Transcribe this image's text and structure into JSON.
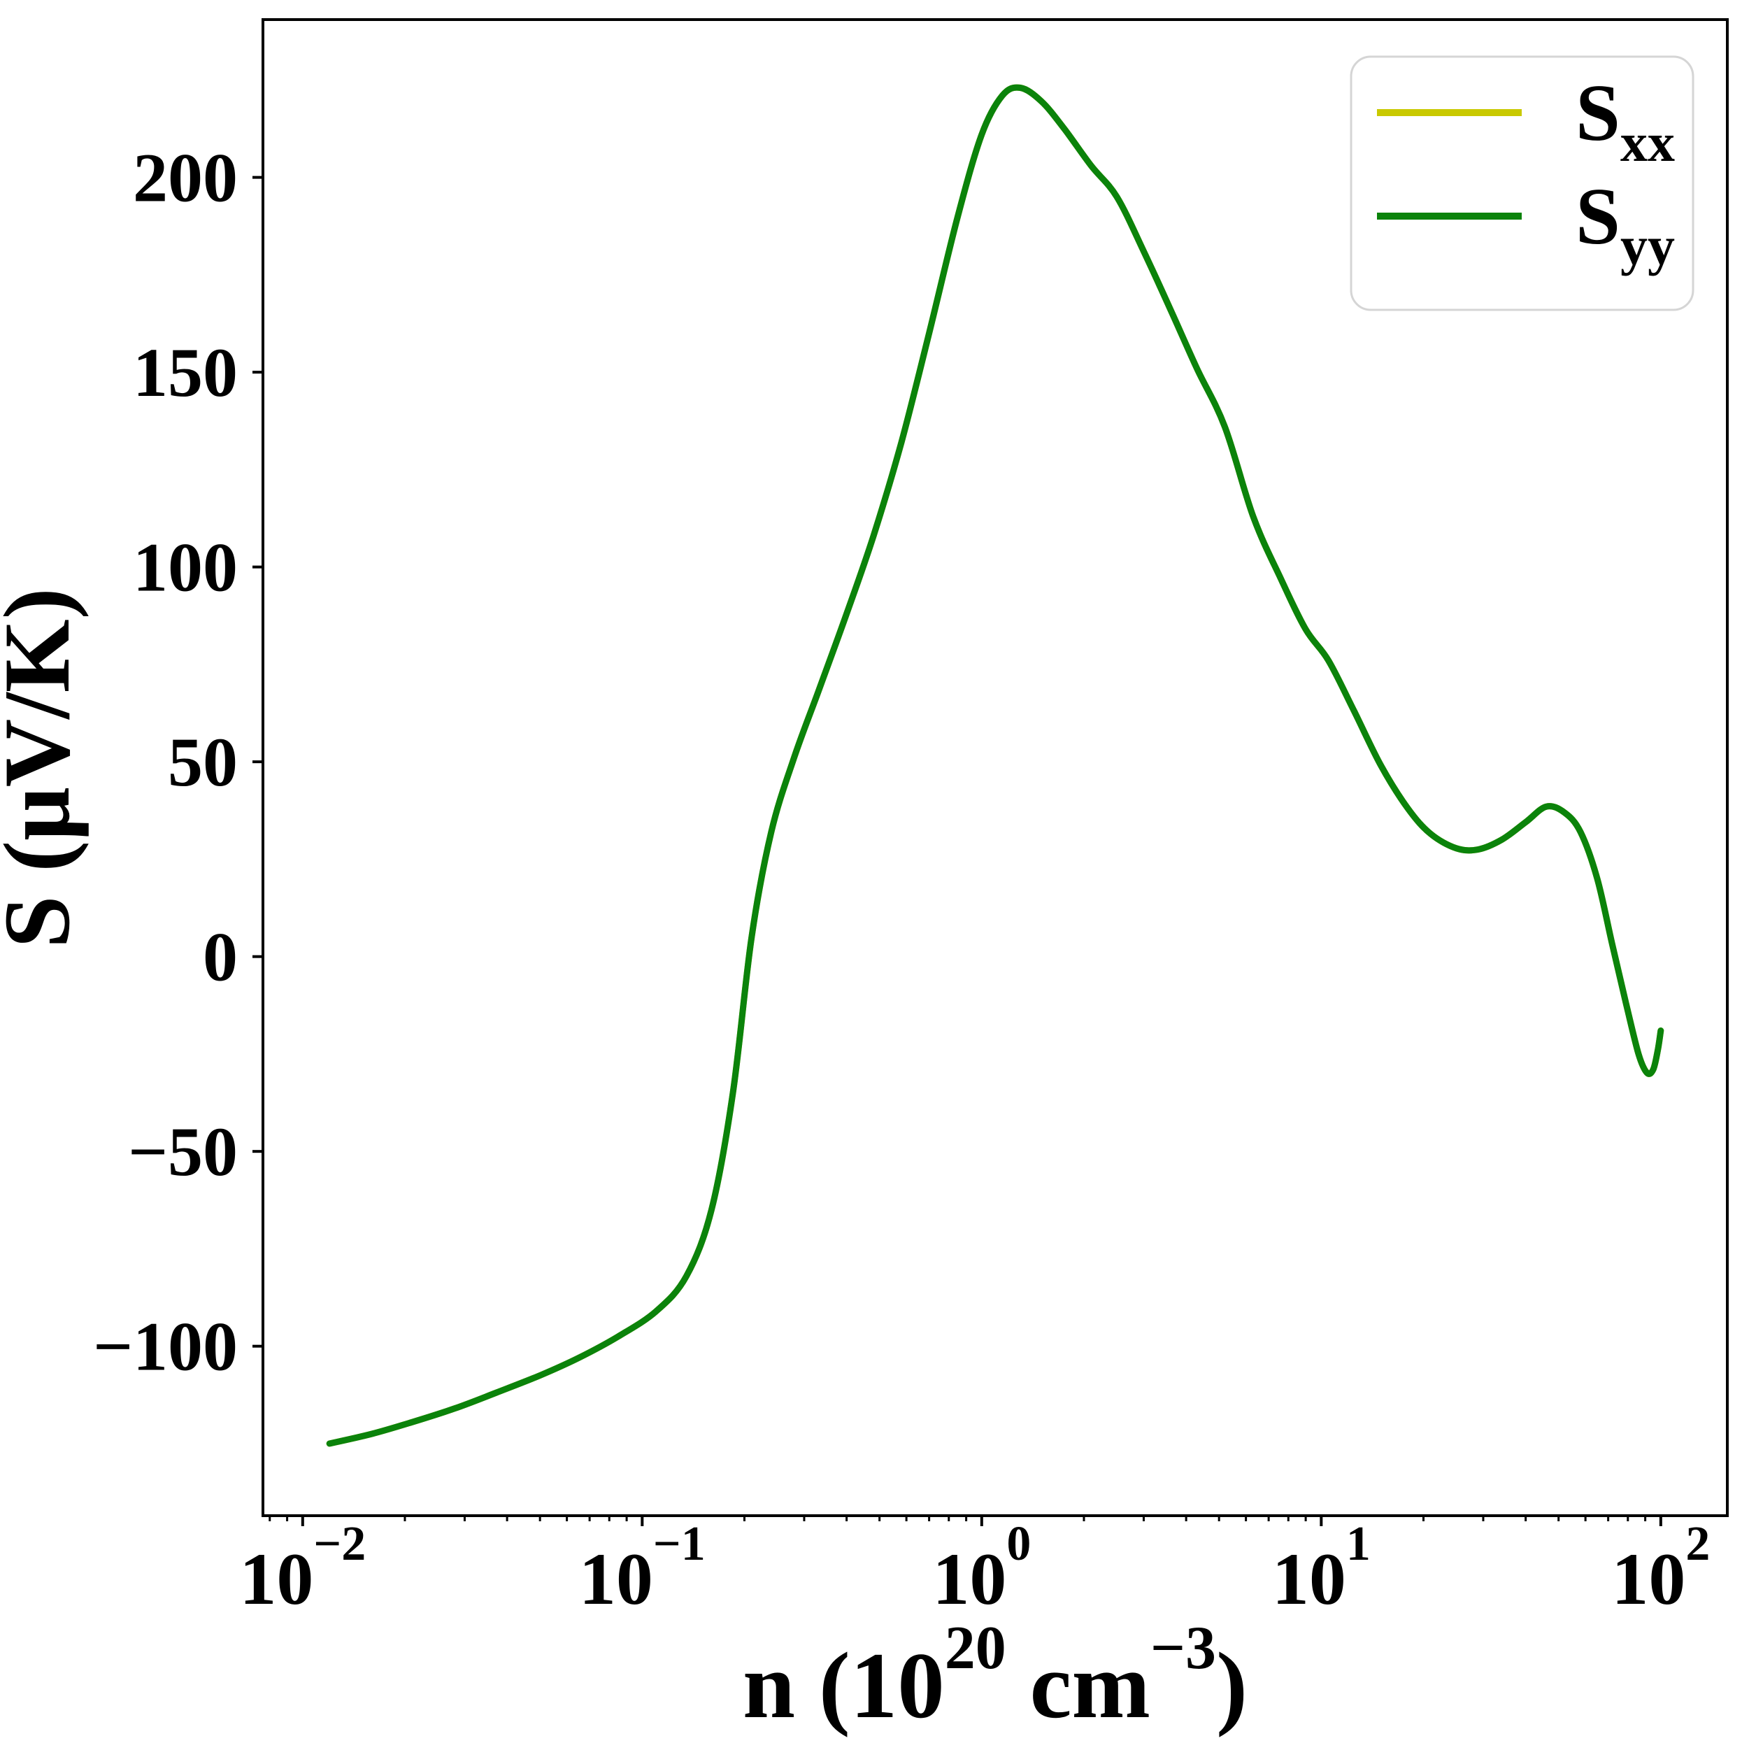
{
  "figure": {
    "background": "#ffffff"
  },
  "chart_data": {
    "type": "line",
    "title": "",
    "xscale": "log",
    "xlabel": "n (10²⁰ cm⁻³)",
    "ylabel": "S (μV/K)",
    "xlabel_parts": [
      {
        "t": "n (10",
        "sup": false
      },
      {
        "t": "20",
        "sup": true
      },
      {
        "t": " cm",
        "sup": false
      },
      {
        "t": "−3",
        "sup": true
      },
      {
        "t": ")",
        "sup": false
      }
    ],
    "xlim_log10": [
      -2.117,
      2.196
    ],
    "ylim": [
      -143.5,
      240.5
    ],
    "grid": false,
    "legend_position": "upper right",
    "x_tick_exponents": [
      -2,
      -1,
      0,
      1,
      2
    ],
    "x_tick_base": "10",
    "y_ticks": [
      200,
      150,
      100,
      50,
      0,
      -50,
      -100
    ],
    "y_tick_labels": [
      "200",
      "150",
      "100",
      "50",
      "0",
      "−50",
      "−100"
    ],
    "x": [
      0.012,
      0.016,
      0.021,
      0.028,
      0.037,
      0.05,
      0.065,
      0.085,
      0.11,
      0.135,
      0.16,
      0.185,
      0.21,
      0.24,
      0.28,
      0.33,
      0.4,
      0.48,
      0.58,
      0.7,
      0.85,
      1.0,
      1.15,
      1.3,
      1.5,
      1.75,
      2.1,
      2.5,
      3.0,
      3.6,
      4.3,
      5.2,
      6.3,
      7.6,
      9.0,
      10.5,
      12.5,
      15,
      18,
      21,
      25,
      29,
      34,
      40,
      46,
      52,
      58,
      65,
      72,
      79,
      86,
      91,
      95,
      98,
      100
    ],
    "series": [
      {
        "name": "Sxx",
        "label_base": "S",
        "label_sub": "xx",
        "color": "#c9c900",
        "values": [
          -125,
          -122.5,
          -119.5,
          -116,
          -112,
          -107.5,
          -103,
          -97.5,
          -91,
          -82,
          -65,
          -35,
          5,
          32,
          51,
          68,
          88,
          108,
          132,
          160,
          190,
          211,
          221,
          223,
          219.5,
          212.5,
          203,
          195,
          181,
          166,
          151,
          136,
          113,
          97,
          84,
          76,
          63,
          49,
          38,
          31.5,
          27.8,
          27.5,
          30,
          34.5,
          38.5,
          37,
          32,
          20,
          3,
          -12,
          -25,
          -29.8,
          -29,
          -24,
          -19
        ]
      },
      {
        "name": "Syy",
        "label_base": "S",
        "label_sub": "yy",
        "color": "#0b830b",
        "values": [
          -125,
          -122.5,
          -119.5,
          -116,
          -112,
          -107.5,
          -103,
          -97.5,
          -91,
          -82,
          -65,
          -35,
          5,
          32,
          51,
          68,
          88,
          108,
          132,
          160,
          190,
          211,
          221,
          223,
          219.5,
          212.5,
          203,
          195,
          181,
          166,
          151,
          136,
          113,
          97,
          84,
          76,
          63,
          49,
          38,
          31.5,
          27.8,
          27.5,
          30,
          34.5,
          38.5,
          37,
          32,
          20,
          3,
          -12,
          -25,
          -29.8,
          -29,
          -24,
          -19
        ]
      }
    ],
    "annotations": []
  },
  "legend": {
    "border_color": "#d5d5d5",
    "background": "#ffffff",
    "entries": [
      {
        "label_base": "S",
        "label_sub": "xx",
        "color": "#c9c900"
      },
      {
        "label_base": "S",
        "label_sub": "yy",
        "color": "#0b830b"
      }
    ]
  },
  "axis_style": {
    "spine_color": "#000000",
    "tick_color": "#000000",
    "text_color": "#000000"
  }
}
